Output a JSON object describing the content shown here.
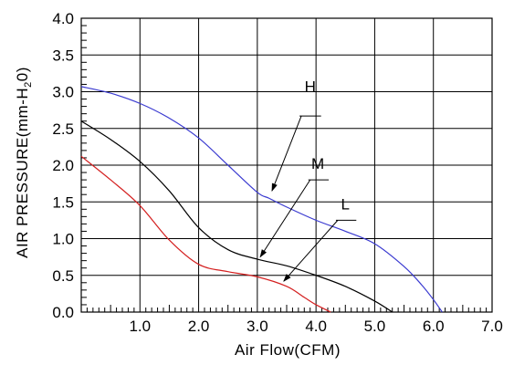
{
  "chart_data": {
    "type": "line",
    "title": "",
    "xlabel": "Air Flow(CFM)",
    "ylabel": "AIR PRESSURE(mm-H2O)",
    "ylabel_parts": {
      "before": "AIR PRESSURE(mm-H",
      "sub": "2",
      "after": "0)"
    },
    "xlim": [
      0,
      7
    ],
    "ylim": [
      0,
      4
    ],
    "grid": true,
    "x_ticks": [
      0,
      1,
      2,
      3,
      4,
      5,
      6,
      7
    ],
    "x_tick_labels": [
      "1.0",
      "2.0",
      "3.0",
      "4.0",
      "5.0",
      "6.0",
      "7.0"
    ],
    "y_ticks": [
      0,
      0.5,
      1,
      1.5,
      2,
      2.5,
      3,
      3.5,
      4
    ],
    "y_tick_labels": [
      "0.0",
      "0.5",
      "1.0",
      "1.5",
      "2.0",
      "2.5",
      "3.0",
      "3.5",
      "4.0"
    ],
    "series": [
      {
        "name": "H",
        "color": "#3a3ad0",
        "x": [
          0,
          0.5,
          1.0,
          1.5,
          2.0,
          2.5,
          3.0,
          3.2,
          3.5,
          4.0,
          4.5,
          5.0,
          5.5,
          5.8,
          6.0,
          6.15
        ],
        "y": [
          3.07,
          2.98,
          2.84,
          2.64,
          2.37,
          2.0,
          1.63,
          1.55,
          1.43,
          1.25,
          1.1,
          0.93,
          0.62,
          0.37,
          0.17,
          0.0
        ]
      },
      {
        "name": "M",
        "color": "#000000",
        "x": [
          0,
          0.5,
          1.0,
          1.5,
          2.0,
          2.5,
          3.0,
          3.5,
          4.0,
          4.5,
          5.0,
          5.3
        ],
        "y": [
          2.6,
          2.35,
          2.05,
          1.65,
          1.15,
          0.85,
          0.72,
          0.63,
          0.5,
          0.35,
          0.15,
          0.0
        ]
      },
      {
        "name": "L",
        "color": "#d42020",
        "x": [
          0,
          0.5,
          1.0,
          1.5,
          2.0,
          2.5,
          3.0,
          3.5,
          3.8,
          4.0,
          4.25
        ],
        "y": [
          2.12,
          1.8,
          1.45,
          0.98,
          0.65,
          0.55,
          0.48,
          0.35,
          0.2,
          0.1,
          0.0
        ]
      }
    ],
    "annotations": [
      {
        "text": "H",
        "tx": 3.9,
        "ty": 3.0,
        "ax": 3.25,
        "ay": 1.65,
        "ux": 3.75,
        "uy": 2.67
      },
      {
        "text": "M",
        "tx": 4.03,
        "ty": 1.95,
        "ax": 3.05,
        "ay": 0.75,
        "ux": 3.9,
        "uy": 1.8
      },
      {
        "text": "L",
        "tx": 4.5,
        "ty": 1.4,
        "ax": 3.45,
        "ay": 0.42,
        "ux": 4.37,
        "uy": 1.25
      }
    ]
  }
}
